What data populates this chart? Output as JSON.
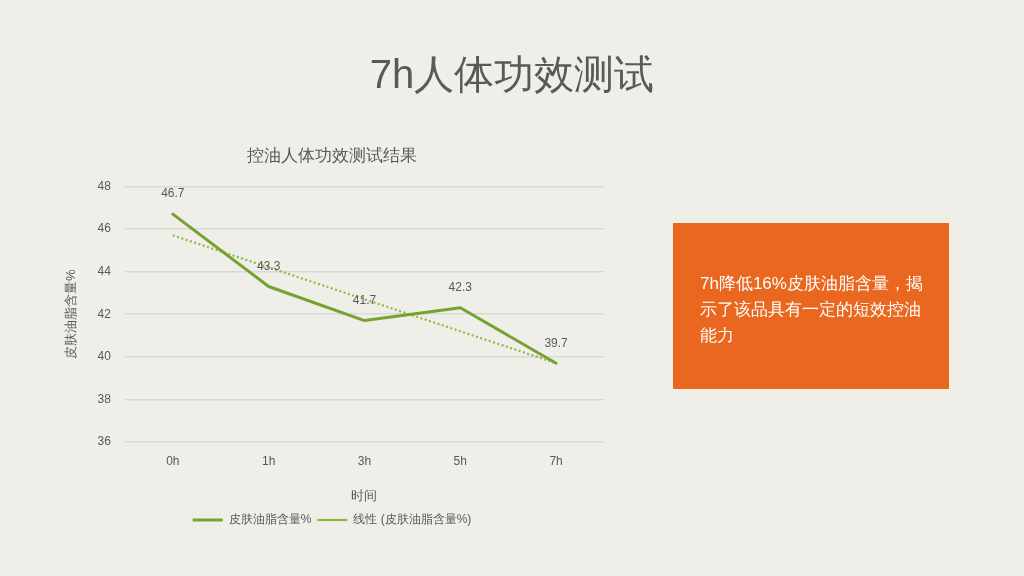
{
  "chart_data": {
    "type": "line",
    "title": "7h人体功效测试",
    "subtitle": "控油人体功效测试结果",
    "xlabel": "时间",
    "ylabel": "皮肤油脂含量%",
    "categories": [
      "0h",
      "1h",
      "3h",
      "5h",
      "7h"
    ],
    "series": [
      {
        "name": "皮肤油脂含量%",
        "color": "#78a22f",
        "values": [
          46.7,
          43.3,
          41.7,
          42.3,
          39.7
        ],
        "value_labels": [
          "46.7",
          "43.3",
          "41.7",
          "42.3",
          "39.7"
        ]
      },
      {
        "name": "线性 (皮肤油脂含量%)",
        "type": "line",
        "color": "#8dba3f",
        "line_style": "dotted",
        "values": [
          45.7,
          44.2,
          42.7,
          41.2,
          39.7
        ]
      }
    ],
    "ylim": [
      36,
      48
    ],
    "yticks": [
      36,
      38,
      40,
      42,
      44,
      46,
      48
    ],
    "grid": "y",
    "legend": "bottom",
    "annotations": [
      "7h降低16%皮肤油脂含量，揭示了该品具有一定的短效控油能力"
    ]
  }
}
